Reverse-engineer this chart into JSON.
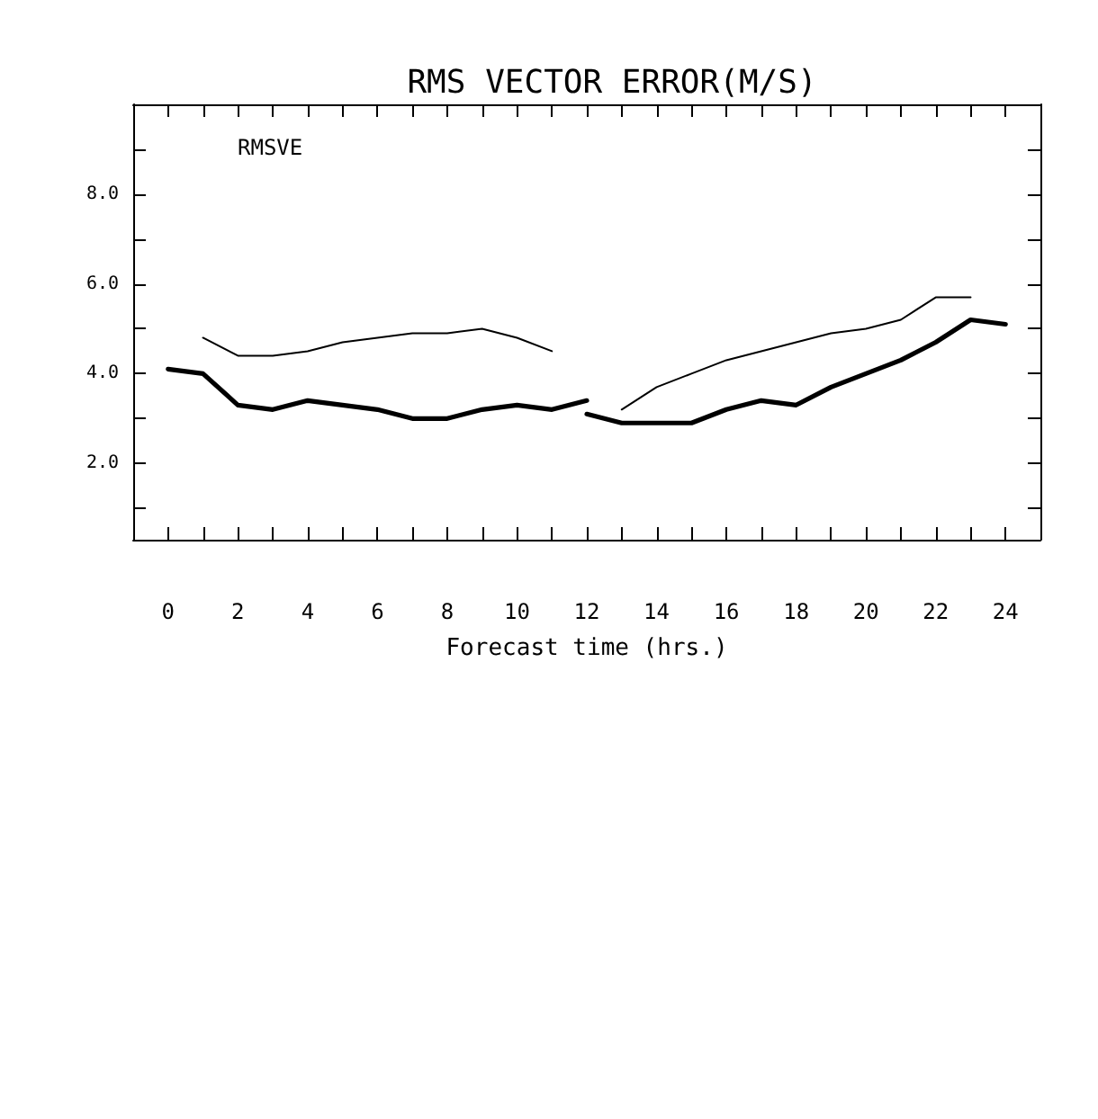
{
  "chart_data": {
    "type": "line",
    "title": "RMS VECTOR ERROR(M/S)",
    "xlabel": "Forecast time (hrs.)",
    "annotations": [
      "RMSVE"
    ],
    "xlim": [
      -1,
      25
    ],
    "xticks": [
      0,
      {
        "value": 1,
        "label": null
      },
      2,
      {
        "value": 3,
        "label": null
      },
      4,
      {
        "value": 5,
        "label": null
      },
      6,
      {
        "value": 7,
        "label": null
      },
      8,
      {
        "value": 9,
        "label": null
      },
      10,
      {
        "value": 11,
        "label": null
      },
      12,
      {
        "value": 13,
        "label": null
      },
      14,
      {
        "value": 15,
        "label": null
      },
      16,
      {
        "value": 17,
        "label": null
      },
      18,
      {
        "value": 19,
        "label": null
      },
      20,
      {
        "value": 21,
        "label": null
      },
      22,
      {
        "value": 23,
        "label": null
      },
      24
    ],
    "ylim": [
      0.3,
      10
    ],
    "yticks": [
      {
        "value": 1,
        "label": null
      },
      {
        "value": 2,
        "label": "2.0"
      },
      {
        "value": 3,
        "label": null
      },
      {
        "value": 4,
        "label": "4.0"
      },
      {
        "value": 5,
        "label": null
      },
      {
        "value": 6,
        "label": "6.0"
      },
      {
        "value": 7,
        "label": null
      },
      {
        "value": 8,
        "label": "8.0"
      },
      {
        "value": 9,
        "label": null
      }
    ],
    "grid": false,
    "marker": "none",
    "line_style": "solid",
    "series": [
      {
        "color": "#000000",
        "x": [
          0,
          1,
          2,
          3,
          4,
          5,
          6,
          7,
          8,
          9,
          10,
          11,
          12
        ],
        "values": [
          4.1,
          4.0,
          3.3,
          3.2,
          3.4,
          3.3,
          3.2,
          3.0,
          3.0,
          3.2,
          3.3,
          3.2,
          3.4
        ]
      },
      {
        "color": "#000000",
        "x": [
          12,
          13,
          14,
          15,
          16,
          17,
          18,
          19,
          20,
          21,
          22,
          23,
          24
        ],
        "values": [
          3.1,
          2.9,
          2.9,
          2.9,
          3.2,
          3.4,
          3.3,
          3.7,
          4.0,
          4.3,
          4.7,
          5.2,
          5.1
        ]
      },
      {
        "color": "#000000",
        "x": [
          1,
          2,
          3,
          4,
          5,
          6,
          7,
          8,
          9,
          10,
          11,
          12,
          13,
          14,
          15,
          16,
          17,
          18,
          19,
          20,
          21,
          22,
          23
        ],
        "values": [
          4.8,
          4.4,
          4.4,
          4.5,
          4.7,
          4.8,
          4.9,
          4.9,
          5.0,
          4.8,
          4.5,
          null,
          3.2,
          3.7,
          4.0,
          4.3,
          4.5,
          4.7,
          4.9,
          5.0,
          5.2,
          5.7,
          5.7
        ]
      }
    ]
  }
}
